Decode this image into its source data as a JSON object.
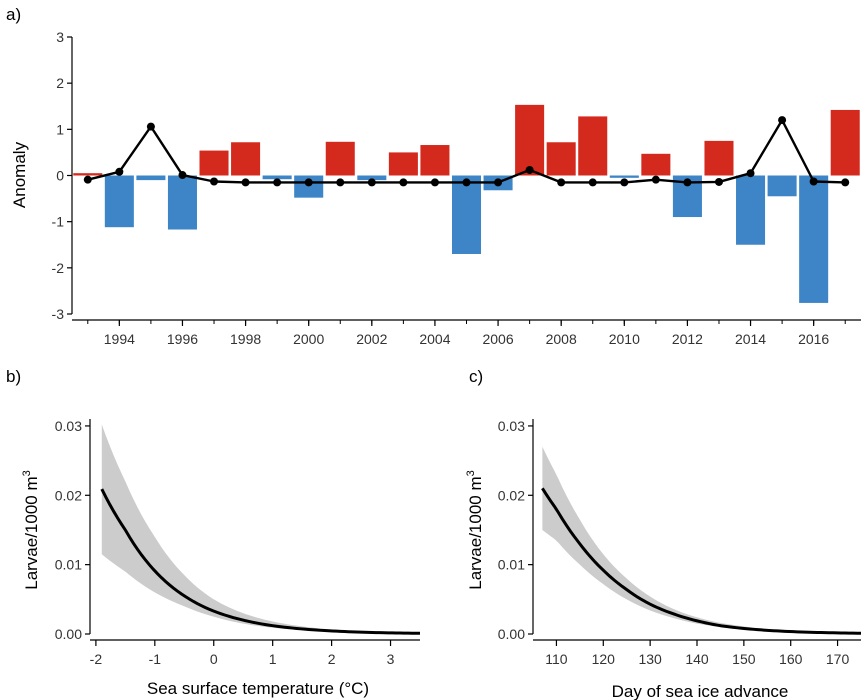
{
  "chart_data": [
    {
      "type": "bar",
      "panel_label": "a)",
      "title": "",
      "xlabel": "",
      "ylabel": "Anomaly",
      "ylim": [
        -3,
        3
      ],
      "xlim": [
        1992.5,
        2017.5
      ],
      "x_ticks": [
        1994,
        1996,
        1998,
        2000,
        2002,
        2004,
        2006,
        2008,
        2010,
        2012,
        2014,
        2016
      ],
      "y_ticks": [
        -3,
        -2,
        -1,
        0,
        1,
        2,
        3
      ],
      "positive_color": "#d42a1e",
      "negative_color": "#3d85c6",
      "line_color": "#000000",
      "categories": [
        1993,
        1994,
        1995,
        1996,
        1997,
        1998,
        1999,
        2000,
        2001,
        2002,
        2003,
        2004,
        2005,
        2006,
        2007,
        2008,
        2009,
        2010,
        2011,
        2012,
        2013,
        2014,
        2015,
        2016,
        2017
      ],
      "series": [
        {
          "type": "bar",
          "values": [
            0.05,
            -1.12,
            -0.1,
            -1.17,
            0.54,
            0.72,
            -0.08,
            -0.48,
            0.73,
            -0.1,
            0.5,
            0.66,
            -1.7,
            -0.32,
            1.53,
            0.72,
            1.28,
            -0.05,
            0.47,
            -0.9,
            0.75,
            -1.5,
            -0.45,
            -2.76,
            1.42
          ]
        },
        {
          "type": "line",
          "values": [
            -0.09,
            0.08,
            1.06,
            0.01,
            -0.13,
            -0.15,
            -0.15,
            -0.15,
            -0.15,
            -0.15,
            -0.15,
            -0.15,
            -0.15,
            -0.15,
            0.12,
            -0.15,
            -0.15,
            -0.15,
            -0.09,
            -0.15,
            -0.14,
            0.05,
            1.2,
            -0.13,
            -0.15
          ]
        }
      ]
    },
    {
      "type": "line",
      "panel_label": "b)",
      "title": "",
      "xlabel": "Sea surface temperature (°C)",
      "ylabel": "Larvae/1000 m",
      "ylabel_sup": "3",
      "xlim": [
        -2.1,
        3.5
      ],
      "ylim": [
        0,
        0.031
      ],
      "x_ticks": [
        -2,
        -1,
        0,
        1,
        2,
        3
      ],
      "y_ticks": [
        0.0,
        0.01,
        0.02,
        0.03
      ],
      "y_tick_labels": [
        "0.00",
        "0.01",
        "0.02",
        "0.03"
      ],
      "band_color": "#cccccc",
      "line_color": "#000000",
      "x": [
        -1.9,
        -1.5,
        -1.0,
        -0.5,
        0.0,
        0.5,
        1.0,
        1.5,
        2.0,
        2.5,
        3.0,
        3.5
      ],
      "y": [
        0.0209,
        0.015,
        0.0091,
        0.0055,
        0.0033,
        0.002,
        0.0012,
        0.00073,
        0.00044,
        0.00027,
        0.00016,
        0.0001
      ],
      "lower": [
        0.0115,
        0.009,
        0.006,
        0.004,
        0.0025,
        0.0015,
        0.0009,
        0.00055,
        0.00032,
        0.0002,
        0.00012,
        7e-05
      ],
      "upper": [
        0.0302,
        0.022,
        0.014,
        0.0085,
        0.005,
        0.003,
        0.0018,
        0.0011,
        0.00065,
        0.0004,
        0.00025,
        0.00015
      ]
    },
    {
      "type": "line",
      "panel_label": "c)",
      "title": "",
      "xlabel": "Day of sea ice advance",
      "ylabel": "Larvae/1000 m",
      "ylabel_sup": "3",
      "xlim": [
        105,
        175
      ],
      "ylim": [
        0,
        0.031
      ],
      "x_ticks": [
        110,
        120,
        130,
        140,
        150,
        160,
        170
      ],
      "y_ticks": [
        0.0,
        0.01,
        0.02,
        0.03
      ],
      "y_tick_labels": [
        "0.00",
        "0.01",
        "0.02",
        "0.03"
      ],
      "band_color": "#cccccc",
      "line_color": "#000000",
      "x": [
        107,
        110,
        115,
        120,
        125,
        130,
        135,
        140,
        145,
        150,
        160,
        170,
        175
      ],
      "y": [
        0.021,
        0.018,
        0.013,
        0.0092,
        0.0064,
        0.0043,
        0.0029,
        0.0019,
        0.0012,
        0.0008,
        0.00035,
        0.00016,
        0.0001
      ],
      "lower": [
        0.015,
        0.0135,
        0.01,
        0.0072,
        0.005,
        0.0034,
        0.0023,
        0.0015,
        0.001,
        0.00065,
        0.00028,
        0.00012,
        8e-05
      ],
      "upper": [
        0.027,
        0.023,
        0.0165,
        0.0115,
        0.008,
        0.0054,
        0.0036,
        0.0024,
        0.0016,
        0.0011,
        0.00045,
        0.0002,
        0.00013
      ]
    }
  ]
}
